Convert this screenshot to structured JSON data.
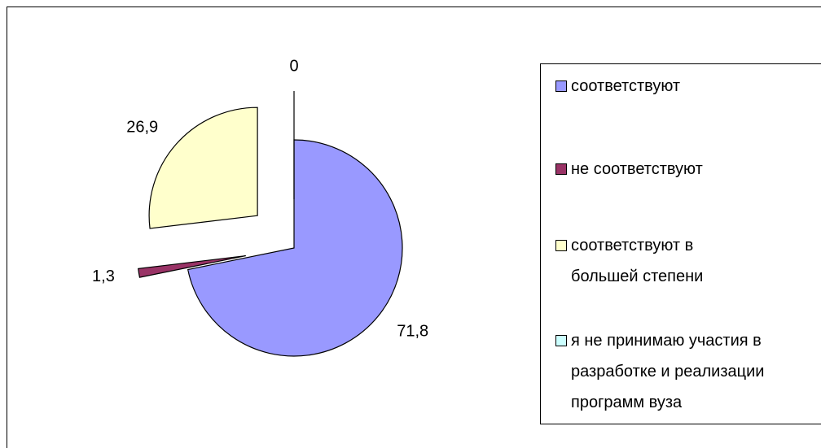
{
  "chart_data": {
    "type": "pie",
    "categories": [
      "соответствуют",
      "не соответствуют",
      "соответствуют в\nбольшей степени",
      "я не принимаю участия в\nразработке и реализации\nпрограмм вуза"
    ],
    "values": [
      71.8,
      1.3,
      26.9,
      0
    ],
    "value_labels": [
      "71,8",
      "1,3",
      "26,9",
      "0"
    ],
    "colors": [
      "#9999ff",
      "#993366",
      "#ffffcc",
      "#ccffff"
    ],
    "legend": "right"
  }
}
